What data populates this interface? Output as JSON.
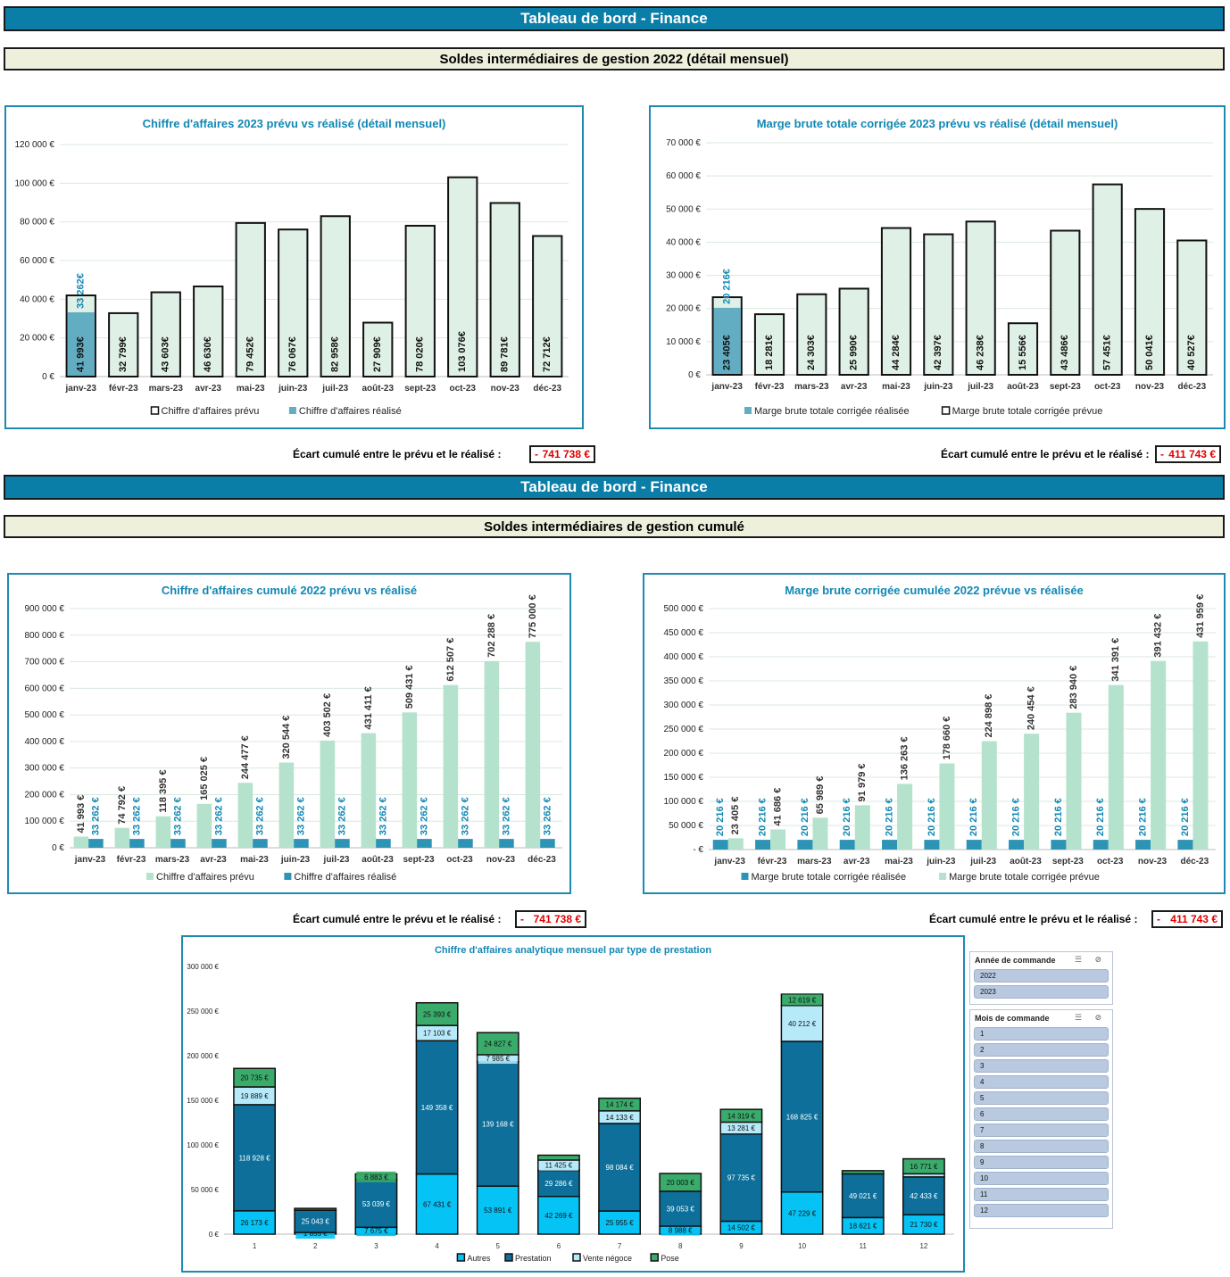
{
  "section1": {
    "banner": "Tableau de bord - Finance",
    "subtitle": "Soldes intermédiaires de gestion 2022 (détail mensuel)"
  },
  "section2": {
    "banner": "Tableau de bord - Finance",
    "subtitle": "Soldes intermédiaires de gestion cumulé"
  },
  "ecart": {
    "label": "Écart cumulé entre le prévu et le réalisé :",
    "dash": "-",
    "ca_monthly": "741 738 €",
    "mb_monthly": "411 743 €",
    "ca_cumul": "741 738 €",
    "mb_cumul": "411 743 €"
  },
  "slicers": {
    "year": {
      "title": "Année de commande",
      "icons": "☰ ⊘",
      "items": [
        "2022",
        "2023"
      ]
    },
    "month": {
      "title": "Mois de commande",
      "icons": "☰ ⊘",
      "items": [
        "1",
        "2",
        "3",
        "4",
        "5",
        "6",
        "7",
        "8",
        "9",
        "10",
        "11",
        "12"
      ]
    }
  },
  "colors": {
    "banner": "#0b7ea8",
    "subbanner": "#eef0dc",
    "panel_border": "#1f89b3",
    "title_text": "#1288b4",
    "planned_fill": "#dff0e6",
    "actual_fill": "#63adc2",
    "cum_planned": "#b5e2cc",
    "cum_actual": "#2e94b5",
    "autres": "#06c3f5",
    "prestation": "#0d6f9a",
    "vente_negoce": "#b6eaf9",
    "pose": "#3aab6a",
    "ecart_value": "#e00000"
  },
  "chart_data": [
    {
      "id": "ca_monthly",
      "type": "bar",
      "title": "Chiffre d'affaires 2023 prévu vs réalisé (détail mensuel)",
      "categories": [
        "janv-23",
        "févr-23",
        "mars-23",
        "avr-23",
        "mai-23",
        "juin-23",
        "juil-23",
        "août-23",
        "sept-23",
        "oct-23",
        "nov-23",
        "déc-23"
      ],
      "yticks": [
        "0 €",
        "20 000 €",
        "40 000 €",
        "60 000 €",
        "80 000 €",
        "100 000 €",
        "120 000 €"
      ],
      "ylim": [
        0,
        120000
      ],
      "series": [
        {
          "name": "Chiffre d'affaires prévu",
          "values": [
            41993,
            32799,
            43603,
            46630,
            79452,
            76067,
            82958,
            27909,
            78020,
            103076,
            89781,
            72712
          ],
          "labels": [
            "41 993€",
            "32 799€",
            "43 603€",
            "46 630€",
            "79 452€",
            "76 067€",
            "82 958€",
            "27 909€",
            "78 020€",
            "103 076€",
            "89 781€",
            "72 712€"
          ]
        },
        {
          "name": "Chiffre d'affaires réalisé",
          "values": [
            33262,
            0,
            0,
            0,
            0,
            0,
            0,
            0,
            0,
            0,
            0,
            0
          ],
          "labels": [
            "33 262€",
            "",
            "",
            "",
            "",
            "",
            "",
            "",
            "",
            "",
            "",
            ""
          ]
        }
      ],
      "legend": "bottom",
      "grid": true
    },
    {
      "id": "mb_monthly",
      "type": "bar",
      "title": "Marge brute totale corrigée 2023 prévu vs réalisé (détail mensuel)",
      "categories": [
        "janv-23",
        "févr-23",
        "mars-23",
        "avr-23",
        "mai-23",
        "juin-23",
        "juil-23",
        "août-23",
        "sept-23",
        "oct-23",
        "nov-23",
        "déc-23"
      ],
      "yticks": [
        "0 €",
        "10 000 €",
        "20 000 €",
        "30 000 €",
        "40 000 €",
        "50 000 €",
        "60 000 €",
        "70 000 €"
      ],
      "ylim": [
        0,
        70000
      ],
      "series": [
        {
          "name": "Marge brute totale corrigée réalisée",
          "values": [
            20216,
            0,
            0,
            0,
            0,
            0,
            0,
            0,
            0,
            0,
            0,
            0
          ],
          "labels": [
            "20 216€",
            "",
            "",
            "",
            "",
            "",
            "",
            "",
            "",
            "",
            "",
            ""
          ]
        },
        {
          "name": "Marge brute totale corrigée prévue",
          "values": [
            23405,
            18281,
            24303,
            25990,
            44284,
            42397,
            46238,
            15556,
            43486,
            57451,
            50041,
            40527
          ],
          "labels": [
            "23 405€",
            "18 281€",
            "24 303€",
            "25 990€",
            "44 284€",
            "42 397€",
            "46 238€",
            "15 556€",
            "43 486€",
            "57 451€",
            "50 041€",
            "40 527€"
          ]
        }
      ],
      "legend": "bottom",
      "grid": true
    },
    {
      "id": "ca_cumul",
      "type": "bar",
      "title": "Chiffre d'affaires cumulé 2022 prévu vs réalisé",
      "categories": [
        "janv-23",
        "févr-23",
        "mars-23",
        "avr-23",
        "mai-23",
        "juin-23",
        "juil-23",
        "août-23",
        "sept-23",
        "oct-23",
        "nov-23",
        "déc-23"
      ],
      "yticks": [
        "0 €",
        "100 000 €",
        "200 000 €",
        "300 000 €",
        "400 000 €",
        "500 000 €",
        "600 000 €",
        "700 000 €",
        "800 000 €",
        "900 000 €"
      ],
      "ylim": [
        0,
        900000
      ],
      "series": [
        {
          "name": "Chiffre d'affaires prévu",
          "values": [
            41993,
            74792,
            118395,
            165025,
            244477,
            320544,
            403502,
            431411,
            509431,
            612507,
            702288,
            775000
          ],
          "labels": [
            "41 993 €",
            "74 792 €",
            "118 395 €",
            "165 025 €",
            "244 477 €",
            "320 544 €",
            "403 502 €",
            "431 411 €",
            "509 431 €",
            "612 507 €",
            "702 288 €",
            "775 000 €"
          ]
        },
        {
          "name": "Chiffre d'affaires réalisé",
          "values": [
            33262,
            33262,
            33262,
            33262,
            33262,
            33262,
            33262,
            33262,
            33262,
            33262,
            33262,
            33262
          ],
          "labels": [
            "33 262 €",
            "33 262 €",
            "33 262 €",
            "33 262 €",
            "33 262 €",
            "33 262 €",
            "33 262 €",
            "33 262 €",
            "33 262 €",
            "33 262 €",
            "33 262 €",
            "33 262 €"
          ]
        }
      ],
      "legend": "bottom",
      "grid": true
    },
    {
      "id": "mb_cumul",
      "type": "bar",
      "title": "Marge brute corrigée cumulée 2022 prévue vs réalisée",
      "categories": [
        "janv-23",
        "févr-23",
        "mars-23",
        "avr-23",
        "mai-23",
        "juin-23",
        "juil-23",
        "août-23",
        "sept-23",
        "oct-23",
        "nov-23",
        "déc-23"
      ],
      "yticks": [
        "- €",
        "50 000 €",
        "100 000 €",
        "150 000 €",
        "200 000 €",
        "250 000 €",
        "300 000 €",
        "350 000 €",
        "400 000 €",
        "450 000 €",
        "500 000 €"
      ],
      "ylim": [
        0,
        500000
      ],
      "series": [
        {
          "name": "Marge brute totale corrigée réalisée",
          "values": [
            20216,
            20216,
            20216,
            20216,
            20216,
            20216,
            20216,
            20216,
            20216,
            20216,
            20216,
            20216
          ],
          "labels": [
            "20 216 €",
            "20 216 €",
            "20 216 €",
            "20 216 €",
            "20 216 €",
            "20 216 €",
            "20 216 €",
            "20 216 €",
            "20 216 €",
            "20 216 €",
            "20 216 €",
            "20 216 €"
          ]
        },
        {
          "name": "Marge brute totale corrigée prévue",
          "values": [
            23405,
            41686,
            65989,
            91979,
            136263,
            178660,
            224898,
            240454,
            283940,
            341391,
            391432,
            431959
          ],
          "labels": [
            "23 405 €",
            "41 686 €",
            "65 989 €",
            "91 979 €",
            "136 263 €",
            "178 660 €",
            "224 898 €",
            "240 454 €",
            "283 940 €",
            "341 391 €",
            "391 432 €",
            "431 959 €"
          ]
        }
      ],
      "legend": "bottom",
      "grid": true
    },
    {
      "id": "ca_analytique",
      "type": "bar",
      "stacked": true,
      "title": "Chiffre d'affaires analytique mensuel par type de prestation",
      "categories": [
        "1",
        "2",
        "3",
        "4",
        "5",
        "6",
        "7",
        "8",
        "9",
        "10",
        "11",
        "12"
      ],
      "yticks": [
        "0 €",
        "50 000 €",
        "100 000 €",
        "150 000 €",
        "200 000 €",
        "250 000 €",
        "300 000 €"
      ],
      "ylim": [
        0,
        300000
      ],
      "series": [
        {
          "name": "Autres",
          "values": [
            26173,
            1855,
            7675,
            67431,
            53891,
            42269,
            25955,
            8988,
            14502,
            47229,
            18621,
            21730
          ],
          "labels": [
            "26 173 €",
            "1 855 €",
            "7 675 €",
            "67 431 €",
            "53 891 €",
            "42 269 €",
            "25 955 €",
            "8 988 €",
            "14 502 €",
            "47 229 €",
            "18 621 €",
            "21 730 €"
          ]
        },
        {
          "name": "Prestation",
          "values": [
            118928,
            25043,
            53039,
            149358,
            139168,
            29286,
            98084,
            39053,
            97735,
            168825,
            49021,
            42433
          ],
          "labels": [
            "118 928 €",
            "25 043 €",
            "53 039 €",
            "149 358 €",
            "139 168 €",
            "29 286 €",
            "98 084 €",
            "39 053 €",
            "97 735 €",
            "168 825 €",
            "49 021 €",
            "42 433 €"
          ]
        },
        {
          "name": "Vente négoce",
          "values": [
            19889,
            0,
            0,
            17103,
            7985,
            11425,
            14133,
            0,
            13281,
            40212,
            0,
            3500
          ],
          "labels": [
            "19 889 €",
            "",
            "",
            "17 103 €",
            "7 985 €",
            "11 425 €",
            "14 133 €",
            "",
            "13 281 €",
            "40 212 €",
            "",
            ""
          ]
        },
        {
          "name": "Pose",
          "values": [
            20735,
            2000,
            6883,
            25393,
            24827,
            5500,
            14174,
            20003,
            14319,
            12619,
            3500,
            16771
          ],
          "labels": [
            "20 735 €",
            "",
            "6 883 €",
            "25 393 €",
            "24 827 €",
            "",
            "14 174 €",
            "20 003 €",
            "14 319 €",
            "12 619 €",
            "",
            "16 771 €"
          ]
        }
      ],
      "legend": "bottom",
      "grid": false
    }
  ]
}
